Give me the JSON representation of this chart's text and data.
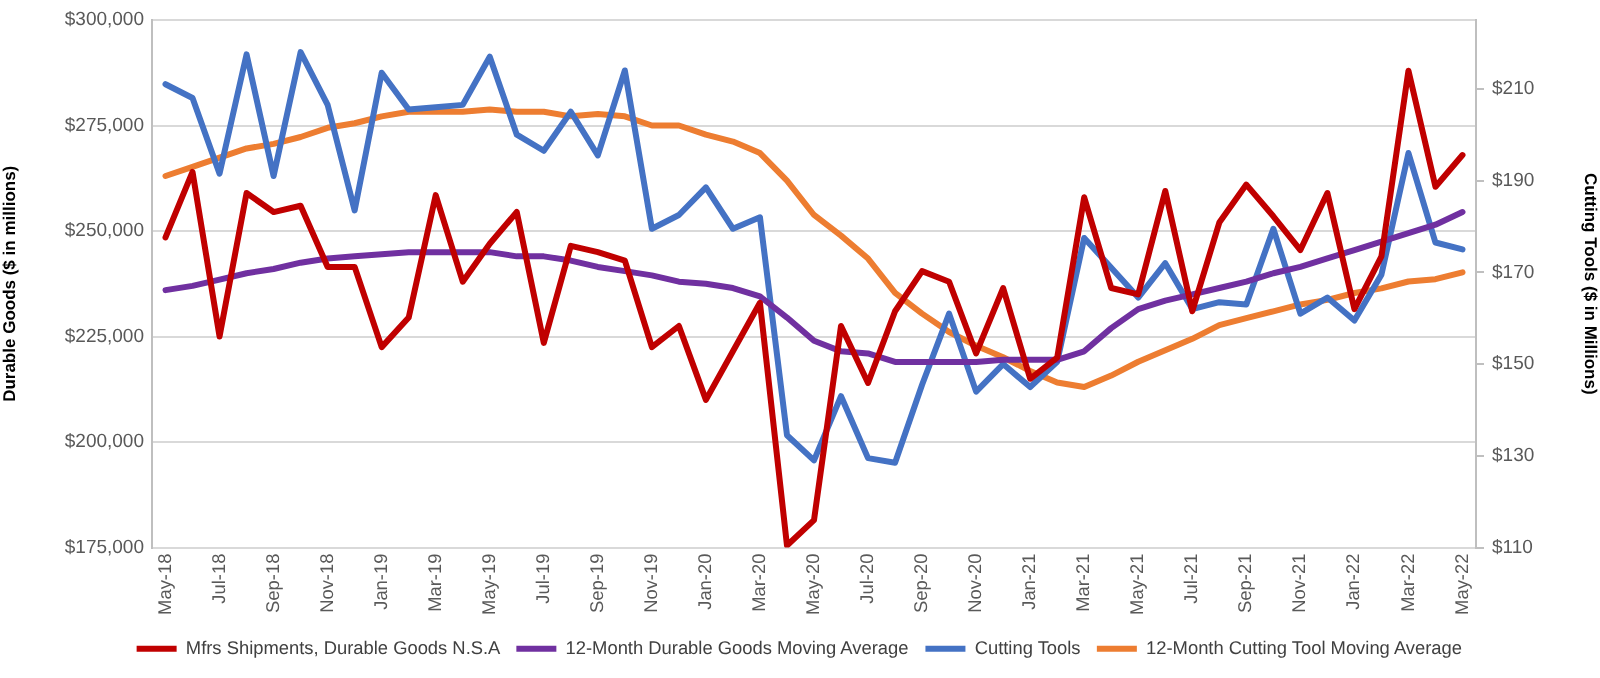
{
  "chart_data": {
    "type": "line",
    "ylabel": "Durable Goods ($ in millions)",
    "y2label": "Cutting Tools ($ in Millions)",
    "categories": [
      "May-18",
      null,
      "Jul-18",
      null,
      "Sep-18",
      null,
      "Nov-18",
      null,
      "Jan-19",
      null,
      "Mar-19",
      null,
      "May-19",
      null,
      "Jul-19",
      null,
      "Sep-19",
      null,
      "Nov-19",
      null,
      "Jan-20",
      null,
      "Mar-20",
      null,
      "May-20",
      null,
      "Jul-20",
      null,
      "Sep-20",
      null,
      "Nov-20",
      null,
      "Jan-21",
      null,
      "Mar-21",
      null,
      "May-21",
      null,
      "Jul-21",
      null,
      "Sep-21",
      null,
      "Nov-21",
      null,
      "Jan-22",
      null,
      "Mar-22",
      null,
      "May-22"
    ],
    "series": [
      {
        "name": "Mfrs Shipments, Durable Goods N.S.A",
        "color": "#c00000",
        "values": [
          248500,
          264000,
          225000,
          259000,
          254500,
          256000,
          241500,
          241500,
          222500,
          229500,
          258500,
          238000,
          247000,
          254500,
          223500,
          246500,
          245000,
          243000,
          222500,
          227500,
          210000,
          221500,
          233000,
          175500,
          181500,
          227500,
          214000,
          231000,
          240500,
          238000,
          221000,
          236500,
          215000,
          220000,
          258000,
          236500,
          235000,
          259500,
          231000,
          252000,
          261000,
          253500,
          245500,
          259000,
          231500,
          244000,
          288000,
          260500,
          268000
        ]
      },
      {
        "name": "12-Month Durable Goods Moving Average",
        "color": "#7030a0",
        "values": [
          236000,
          237000,
          238500,
          240000,
          241000,
          242500,
          243500,
          244000,
          244500,
          245000,
          245000,
          245000,
          245000,
          244000,
          244000,
          243000,
          241500,
          240500,
          239500,
          238000,
          237500,
          236500,
          234500,
          229500,
          224000,
          221500,
          221000,
          219000,
          219000,
          219000,
          219000,
          219500,
          219500,
          219500,
          221500,
          227000,
          231500,
          233500,
          235000,
          236500,
          238000,
          240000,
          241500,
          243500,
          245500,
          247500,
          249500,
          251500,
          254500
        ]
      },
      {
        "name": "Cutting Tools",
        "color": "#4472c4",
        "axis": "y2",
        "values": [
          211,
          208,
          191.5,
          217.5,
          191,
          218,
          206.5,
          183.5,
          213.5,
          205.5,
          206,
          206.5,
          217,
          200,
          196.5,
          205,
          195.5,
          214,
          179.5,
          182.5,
          188.5,
          179.5,
          182,
          134.5,
          129,
          143,
          129.5,
          128.5,
          145.5,
          161,
          144,
          150,
          145,
          150.5,
          177.5,
          171,
          164.5,
          172,
          162,
          163.5,
          163,
          179.5,
          161,
          164.5,
          159.5,
          169.5,
          196,
          176.5,
          175
        ]
      },
      {
        "name": "12-Month Cutting Tool Moving Average",
        "color": "#ed7d31",
        "axis": "y2",
        "values": [
          191,
          193,
          195,
          197,
          198,
          199.5,
          201.5,
          202.5,
          204,
          205,
          205,
          205,
          205.5,
          205,
          205,
          204,
          204.5,
          204,
          202,
          202,
          200,
          198.5,
          196,
          190,
          182.5,
          178,
          173,
          165.5,
          161,
          157,
          154,
          151.5,
          148.5,
          146,
          145,
          147.5,
          150.5,
          153,
          155.5,
          158.5,
          160,
          161.5,
          163,
          164,
          165.5,
          166.5,
          168,
          168.5,
          170
        ]
      }
    ],
    "ylim": [
      175000,
      300000
    ],
    "yticks": [
      {
        "value": 175000,
        "label": "$175,000"
      },
      {
        "value": 200000,
        "label": "$200,000"
      },
      {
        "value": 225000,
        "label": "$225,000"
      },
      {
        "value": 250000,
        "label": "$250,000"
      },
      {
        "value": 275000,
        "label": "$275,000"
      },
      {
        "value": 300000,
        "label": "$300,000"
      }
    ],
    "y2lim": [
      110,
      225
    ],
    "y2ticks": [
      {
        "value": 110,
        "label": "$110"
      },
      {
        "value": 130,
        "label": "$130"
      },
      {
        "value": 150,
        "label": "$150"
      },
      {
        "value": 170,
        "label": "$170"
      },
      {
        "value": 190,
        "label": "$190"
      },
      {
        "value": 210,
        "label": "$210"
      }
    ],
    "grid": "y",
    "legend": "bottom"
  }
}
